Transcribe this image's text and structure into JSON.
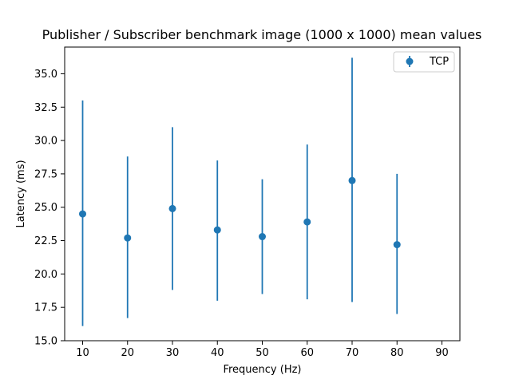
{
  "chart_data": {
    "type": "scatter",
    "title": "Publisher / Subscriber benchmark image (1000 x 1000) mean values",
    "xlabel": "Frequency (Hz)",
    "ylabel": "Latency (ms)",
    "xlim": [
      6,
      94
    ],
    "ylim": [
      15.0,
      37.0
    ],
    "x_ticks": [
      10,
      20,
      30,
      40,
      50,
      60,
      70,
      80,
      90
    ],
    "y_ticks": [
      15.0,
      17.5,
      20.0,
      22.5,
      25.0,
      27.5,
      30.0,
      32.5,
      35.0
    ],
    "x_tick_labels": [
      "10",
      "20",
      "30",
      "40",
      "50",
      "60",
      "70",
      "80",
      "90"
    ],
    "y_tick_labels": [
      "15.0",
      "17.5",
      "20.0",
      "22.5",
      "25.0",
      "27.5",
      "30.0",
      "32.5",
      "35.0"
    ],
    "grid": false,
    "legend_position": "top-right",
    "series": [
      {
        "name": "TCP",
        "color": "#1f77b4",
        "marker": "circle",
        "error_bars": true,
        "x": [
          10,
          20,
          30,
          40,
          50,
          60,
          70,
          80
        ],
        "y": [
          24.5,
          22.7,
          24.9,
          23.3,
          22.8,
          23.9,
          27.0,
          22.2
        ],
        "err_low": [
          16.1,
          16.7,
          18.8,
          18.0,
          18.5,
          18.1,
          17.9,
          17.0
        ],
        "err_high": [
          33.0,
          28.8,
          31.0,
          28.5,
          27.1,
          29.7,
          36.2,
          27.5
        ]
      }
    ]
  }
}
